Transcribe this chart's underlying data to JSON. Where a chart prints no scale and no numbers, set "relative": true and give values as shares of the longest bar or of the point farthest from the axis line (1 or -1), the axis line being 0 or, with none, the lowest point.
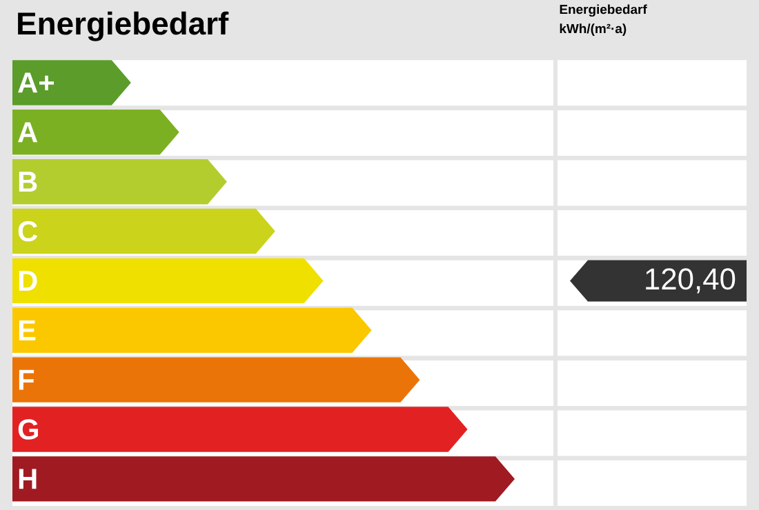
{
  "chart_data": {
    "type": "bar",
    "orientation": "horizontal",
    "relative": true,
    "title": "Energiebedarf",
    "categories": [
      "A+",
      "A",
      "B",
      "C",
      "D",
      "E",
      "F",
      "G",
      "H"
    ],
    "values": [
      0.236,
      0.332,
      0.427,
      0.523,
      0.619,
      0.715,
      0.811,
      0.906,
      1
    ],
    "colors": [
      "#5b9c2a",
      "#7cb023",
      "#b3cd2f",
      "#cbd31a",
      "#efe000",
      "#fbc800",
      "#eb7408",
      "#e22123",
      "#a01a22"
    ],
    "annotations": [
      "Energiebedarf kWh/(m²·a)",
      "120,40"
    ]
  }
}
